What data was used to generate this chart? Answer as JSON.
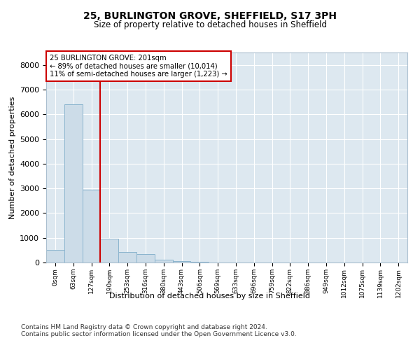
{
  "title1": "25, BURLINGTON GROVE, SHEFFIELD, S17 3PH",
  "title2": "Size of property relative to detached houses in Sheffield",
  "xlabel": "Distribution of detached houses by size in Sheffield",
  "ylabel": "Number of detached properties",
  "bar_color": "#ccdce8",
  "bar_edge_color": "#8ab4ce",
  "background_color": "#dde8f0",
  "vline_color": "#cc0000",
  "vline_position": 2.5,
  "annotation_lines": [
    "25 BURLINGTON GROVE: 201sqm",
    "← 89% of detached houses are smaller (10,014)",
    "11% of semi-detached houses are larger (1,223) →"
  ],
  "annotation_box_color": "#cc0000",
  "bins": [
    "0sqm",
    "63sqm",
    "127sqm",
    "190sqm",
    "253sqm",
    "316sqm",
    "380sqm",
    "443sqm",
    "506sqm",
    "569sqm",
    "633sqm",
    "696sqm",
    "759sqm",
    "822sqm",
    "886sqm",
    "949sqm",
    "1012sqm",
    "1075sqm",
    "1139sqm",
    "1202sqm"
  ],
  "values": [
    500,
    6400,
    2950,
    950,
    430,
    350,
    120,
    50,
    30,
    0,
    0,
    0,
    0,
    0,
    0,
    0,
    0,
    0,
    0,
    0
  ],
  "ylim": [
    0,
    8500
  ],
  "yticks": [
    0,
    1000,
    2000,
    3000,
    4000,
    5000,
    6000,
    7000,
    8000
  ],
  "footnote1": "Contains HM Land Registry data © Crown copyright and database right 2024.",
  "footnote2": "Contains public sector information licensed under the Open Government Licence v3.0."
}
